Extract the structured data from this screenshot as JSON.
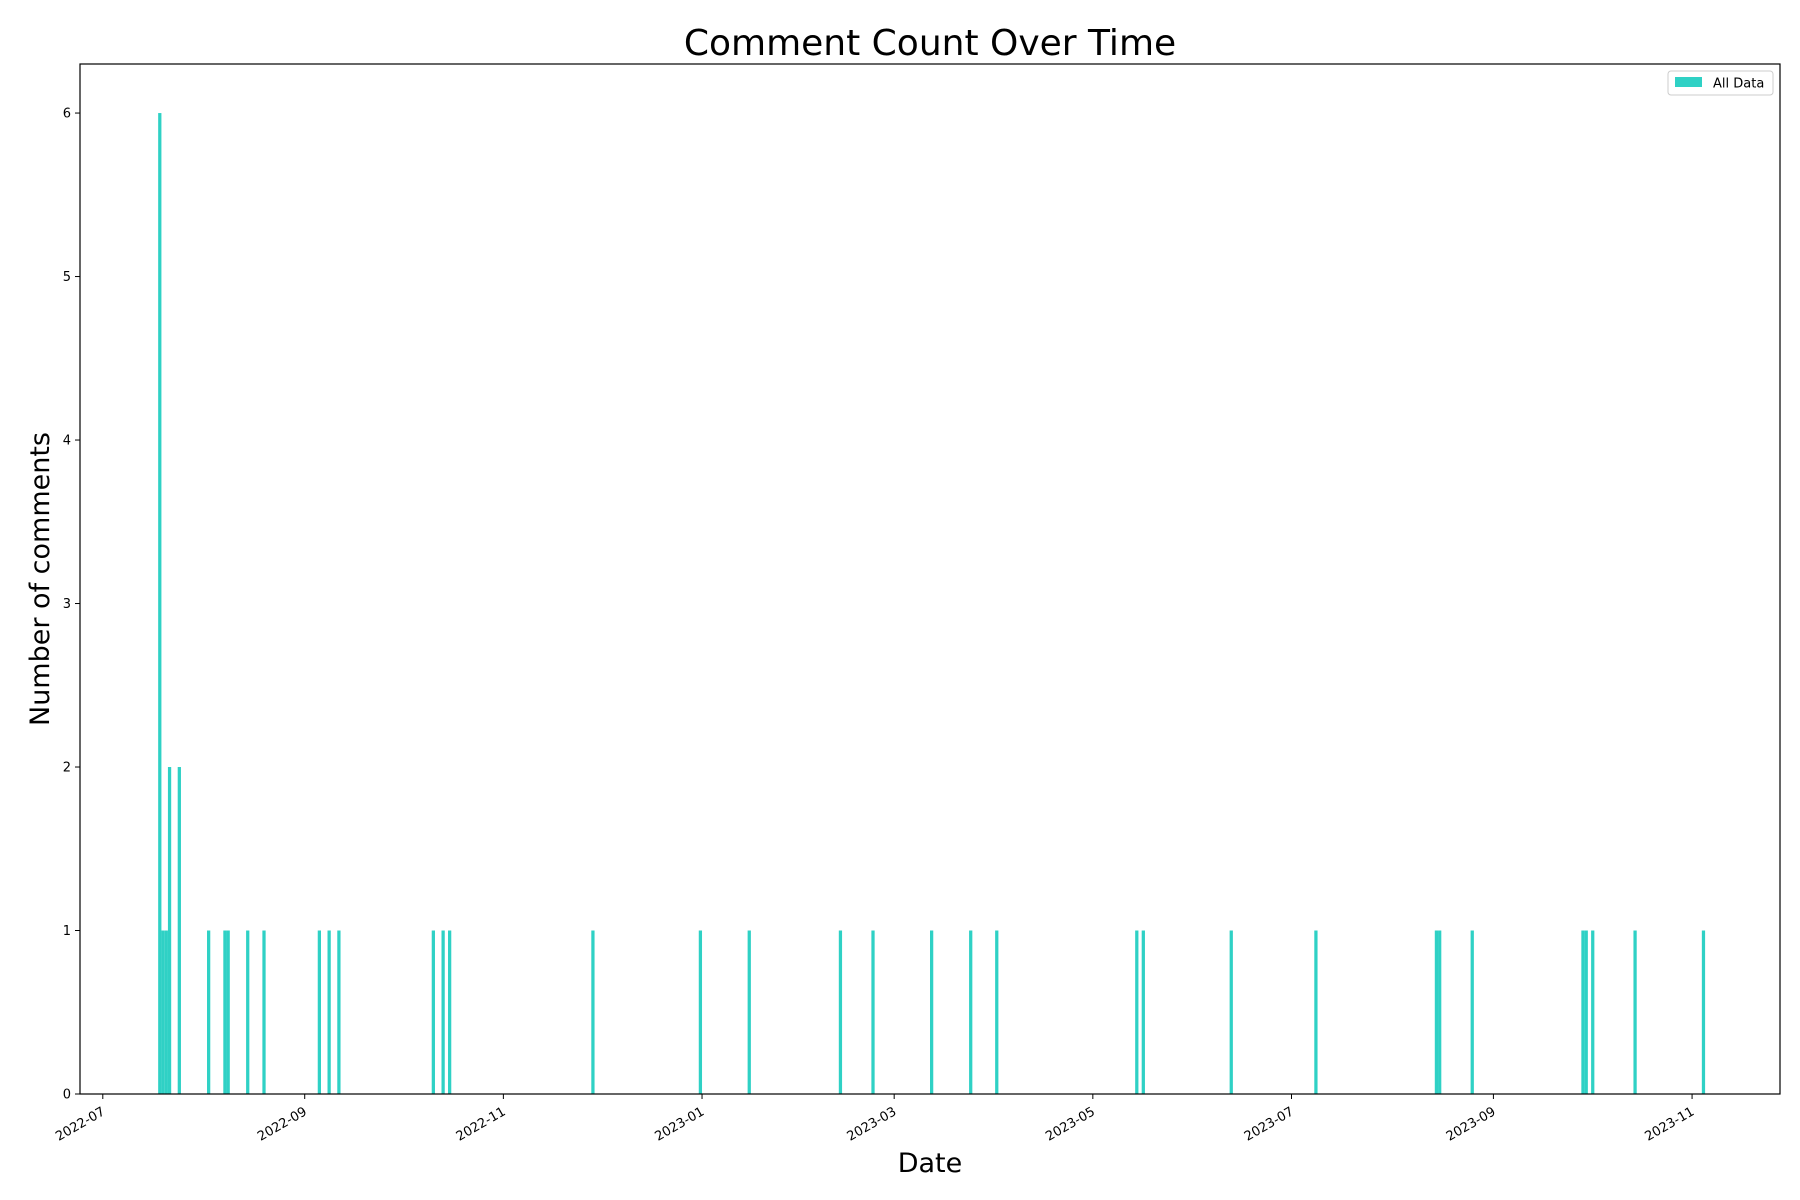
{
  "chart_data": {
    "type": "bar",
    "title": "Comment Count Over Time",
    "xlabel": "Date",
    "ylabel": "Number of comments",
    "xlim": [
      "2022-06-24",
      "2023-11-28"
    ],
    "ylim": [
      0,
      6.3
    ],
    "x_ticks": [
      "2022-07",
      "2022-09",
      "2022-11",
      "2023-01",
      "2023-03",
      "2023-05",
      "2023-07",
      "2023-09",
      "2023-11"
    ],
    "y_ticks": [
      "0",
      "1",
      "2",
      "3",
      "4",
      "5",
      "6"
    ],
    "legend": {
      "position": "top-right",
      "entries": [
        "All Data"
      ]
    },
    "grid": false,
    "color": "#2fd1c5",
    "series": [
      {
        "name": "All Data",
        "points": [
          {
            "x": "2022-07-18",
            "y": 6
          },
          {
            "x": "2022-07-19",
            "y": 1
          },
          {
            "x": "2022-07-20",
            "y": 1
          },
          {
            "x": "2022-07-21",
            "y": 2
          },
          {
            "x": "2022-07-24",
            "y": 2
          },
          {
            "x": "2022-08-02",
            "y": 1
          },
          {
            "x": "2022-08-07",
            "y": 1
          },
          {
            "x": "2022-08-08",
            "y": 1
          },
          {
            "x": "2022-08-14",
            "y": 1
          },
          {
            "x": "2022-08-19",
            "y": 1
          },
          {
            "x": "2022-09-05",
            "y": 1
          },
          {
            "x": "2022-09-08",
            "y": 1
          },
          {
            "x": "2022-09-11",
            "y": 1
          },
          {
            "x": "2022-10-10",
            "y": 1
          },
          {
            "x": "2022-10-13",
            "y": 1
          },
          {
            "x": "2022-10-15",
            "y": 1
          },
          {
            "x": "2022-11-28",
            "y": 1
          },
          {
            "x": "2022-12-31",
            "y": 1
          },
          {
            "x": "2023-01-15",
            "y": 1
          },
          {
            "x": "2023-02-12",
            "y": 1
          },
          {
            "x": "2023-02-22",
            "y": 1
          },
          {
            "x": "2023-03-12",
            "y": 1
          },
          {
            "x": "2023-03-24",
            "y": 1
          },
          {
            "x": "2023-04-01",
            "y": 1
          },
          {
            "x": "2023-05-14",
            "y": 1
          },
          {
            "x": "2023-05-16",
            "y": 1
          },
          {
            "x": "2023-06-12",
            "y": 1
          },
          {
            "x": "2023-07-08",
            "y": 1
          },
          {
            "x": "2023-08-14",
            "y": 1
          },
          {
            "x": "2023-08-15",
            "y": 1
          },
          {
            "x": "2023-08-25",
            "y": 1
          },
          {
            "x": "2023-09-28",
            "y": 1
          },
          {
            "x": "2023-09-29",
            "y": 1
          },
          {
            "x": "2023-10-01",
            "y": 1
          },
          {
            "x": "2023-10-14",
            "y": 1
          },
          {
            "x": "2023-11-04",
            "y": 1
          }
        ]
      }
    ]
  }
}
